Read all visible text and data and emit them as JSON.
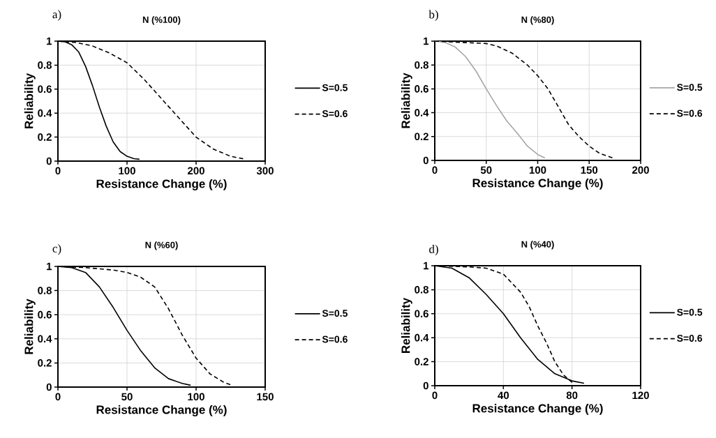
{
  "chart_data": [
    {
      "type": "line",
      "title": "N (%100)",
      "xlabel": "Resistance Change (%)",
      "ylabel": "Reliability",
      "annotations": [
        "a)"
      ],
      "xlim": [
        0,
        300
      ],
      "xticks": [
        0,
        100,
        200,
        300
      ],
      "ylim": [
        0,
        1
      ],
      "yticks": [
        0,
        0.2,
        0.4,
        0.6,
        0.8,
        1
      ],
      "grid": true,
      "legend": "right",
      "series": [
        {
          "name": "S=0.5",
          "color": "#000000",
          "line_style": "solid",
          "x": [
            0,
            10,
            20,
            30,
            40,
            50,
            60,
            70,
            80,
            90,
            100,
            110,
            118
          ],
          "values": [
            1,
            0.995,
            0.97,
            0.91,
            0.79,
            0.63,
            0.45,
            0.29,
            0.16,
            0.08,
            0.04,
            0.02,
            0.015
          ]
        },
        {
          "name": "S=0.6",
          "color": "#000000",
          "line_style": "dashed",
          "x": [
            0,
            25,
            50,
            75,
            100,
            125,
            150,
            175,
            200,
            225,
            250,
            272
          ],
          "values": [
            1,
            0.99,
            0.96,
            0.9,
            0.82,
            0.68,
            0.52,
            0.36,
            0.2,
            0.1,
            0.04,
            0.015
          ]
        }
      ]
    },
    {
      "type": "line",
      "title": "N (%80)",
      "xlabel": "Resistance Change (%)",
      "ylabel": "Reliability",
      "annotations": [
        "b)"
      ],
      "xlim": [
        0,
        200
      ],
      "xticks": [
        0,
        50,
        100,
        150,
        200
      ],
      "ylim": [
        0,
        1
      ],
      "yticks": [
        0,
        0.2,
        0.4,
        0.6,
        0.8,
        1
      ],
      "grid": true,
      "legend": "right",
      "series": [
        {
          "name": "S=0.5",
          "color": "#a6a6a6",
          "line_style": "solid",
          "x": [
            0,
            10,
            20,
            30,
            40,
            50,
            60,
            70,
            80,
            90,
            100,
            107
          ],
          "values": [
            1,
            0.99,
            0.95,
            0.87,
            0.75,
            0.6,
            0.46,
            0.33,
            0.23,
            0.12,
            0.05,
            0.02
          ]
        },
        {
          "name": "S=0.6",
          "color": "#000000",
          "line_style": "dashed",
          "x": [
            0,
            25,
            50,
            60,
            75,
            90,
            100,
            110,
            120,
            130,
            140,
            150,
            160,
            175
          ],
          "values": [
            1,
            0.99,
            0.98,
            0.96,
            0.9,
            0.8,
            0.71,
            0.6,
            0.45,
            0.3,
            0.2,
            0.12,
            0.06,
            0.015
          ]
        }
      ]
    },
    {
      "type": "line",
      "title": "N (%60)",
      "xlabel": "Resistance Change (%)",
      "ylabel": "Reliability",
      "annotations": [
        "c)"
      ],
      "xlim": [
        0,
        150
      ],
      "xticks": [
        0,
        50,
        100,
        150
      ],
      "ylim": [
        0,
        1
      ],
      "yticks": [
        0,
        0.2,
        0.4,
        0.6,
        0.8,
        1
      ],
      "grid": true,
      "legend": "right",
      "series": [
        {
          "name": "S=0.5",
          "color": "#000000",
          "line_style": "solid",
          "x": [
            0,
            10,
            20,
            30,
            40,
            50,
            60,
            70,
            80,
            90,
            96
          ],
          "values": [
            1,
            0.99,
            0.95,
            0.83,
            0.66,
            0.47,
            0.3,
            0.16,
            0.07,
            0.03,
            0.015
          ]
        },
        {
          "name": "S=0.6",
          "color": "#000000",
          "line_style": "dashed",
          "x": [
            0,
            20,
            40,
            50,
            60,
            70,
            80,
            90,
            100,
            110,
            120,
            126
          ],
          "values": [
            1,
            0.99,
            0.97,
            0.95,
            0.91,
            0.83,
            0.65,
            0.43,
            0.24,
            0.11,
            0.04,
            0.015
          ]
        }
      ]
    },
    {
      "type": "line",
      "title": "N (%40)",
      "xlabel": "Resistance Change (%)",
      "ylabel": "Reliability",
      "annotations": [
        "d)"
      ],
      "xlim": [
        0,
        120
      ],
      "xticks": [
        0,
        40,
        80,
        120
      ],
      "ylim": [
        0,
        1
      ],
      "yticks": [
        0,
        0.2,
        0.4,
        0.6,
        0.8,
        1
      ],
      "grid": true,
      "legend": "right",
      "series": [
        {
          "name": "S=0.5",
          "color": "#000000",
          "line_style": "solid",
          "x": [
            0,
            10,
            20,
            30,
            40,
            50,
            60,
            70,
            80,
            87
          ],
          "values": [
            1,
            0.98,
            0.9,
            0.76,
            0.6,
            0.4,
            0.22,
            0.1,
            0.04,
            0.02
          ]
        },
        {
          "name": "S=0.6",
          "color": "#000000",
          "line_style": "dashed",
          "x": [
            0,
            20,
            30,
            40,
            50,
            55,
            60,
            65,
            70,
            75,
            81
          ],
          "values": [
            1,
            0.99,
            0.98,
            0.93,
            0.78,
            0.66,
            0.5,
            0.36,
            0.2,
            0.09,
            0.015
          ]
        }
      ]
    }
  ]
}
